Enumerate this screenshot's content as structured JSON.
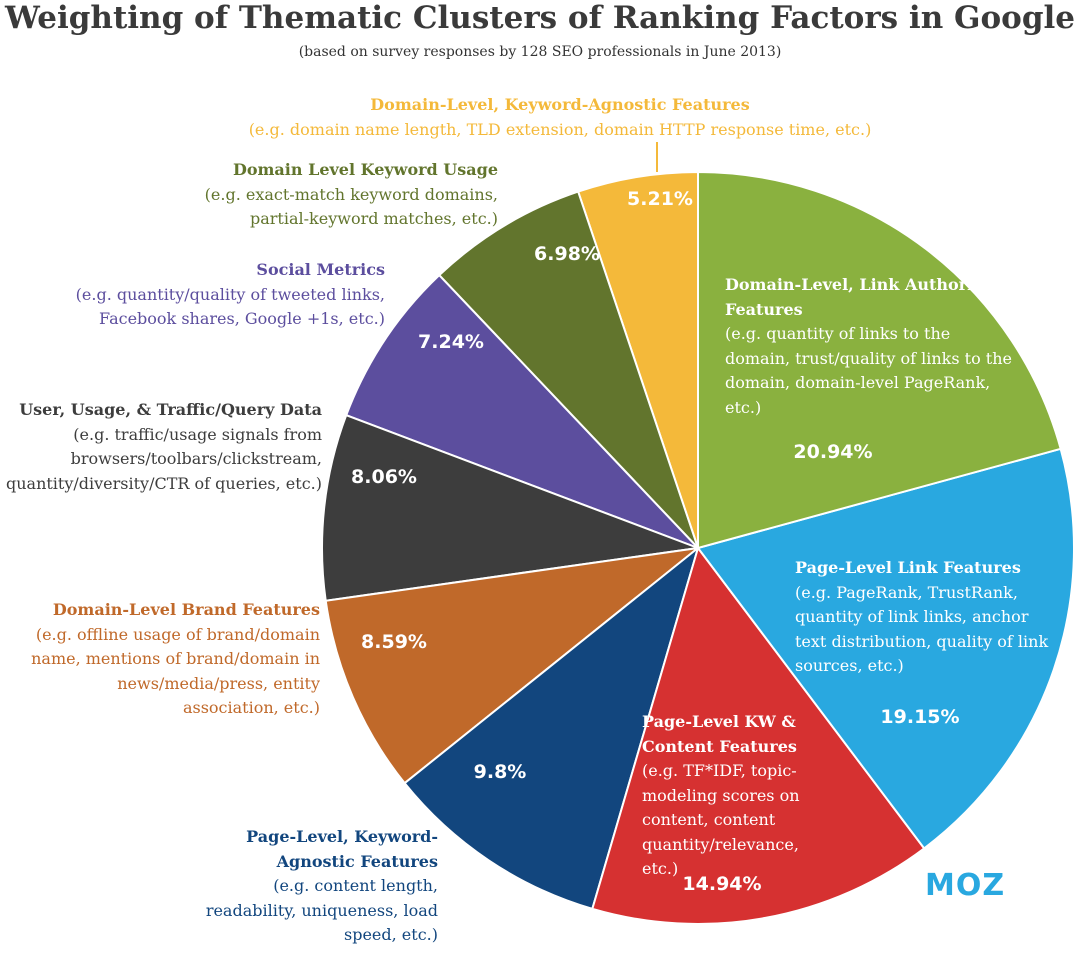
{
  "chart_data": {
    "type": "pie",
    "title": "Weighting of Thematic Clusters of Ranking Factors in Google",
    "subtitle": "(based on survey responses by 128 SEO professionals in June 2013)",
    "categories": [
      "Domain-Level, Link Authority Features",
      "Page-Level Link Features",
      "Page-Level KW & Content Features",
      "Page-Level, Keyword-Agnostic Features",
      "Domain-Level Brand Features",
      "User, Usage, & Traffic/Query Data",
      "Social Metrics",
      "Domain Level Keyword Usage",
      "Domain-Level, Keyword-Agnostic Features"
    ],
    "descriptions": [
      "(e.g. quantity of links to the domain, trust/quality of links to the domain, domain-level PageRank, etc.)",
      "(e.g. PageRank, TrustRank, quantity of link links, anchor text distribution, quality of link sources, etc.)",
      "(e.g. TF*IDF, topic-modeling scores on content, content quantity/relevance, etc.)",
      "(e.g. content length, readability, uniqueness, load speed, etc.)",
      "(e.g. offline usage of brand/domain name, mentions of brand/domain in news/media/press, entity association, etc.)",
      "(e.g. traffic/usage signals from browsers/toolbars/clickstream, quantity/diversity/CTR of queries, etc.)",
      "(e.g. quantity/quality of tweeted links, Facebook shares, Google +1s, etc.)",
      "(e.g. exact-match keyword domains, partial-keyword matches, etc.)",
      "(e.g. domain name length, TLD extension, domain HTTP response time, etc.)"
    ],
    "values": [
      20.94,
      19.15,
      14.94,
      9.8,
      8.59,
      8.06,
      7.24,
      6.98,
      5.21
    ],
    "value_labels": [
      "20.94%",
      "19.15%",
      "14.94%",
      "9.8%",
      "8.59%",
      "8.06%",
      "7.24%",
      "6.98%",
      "5.21%"
    ],
    "colors": [
      "#8ab13f",
      "#29a8e0",
      "#d63131",
      "#12467e",
      "#c0692a",
      "#3d3d3d",
      "#5c4e9e",
      "#62752d",
      "#f4b93a"
    ],
    "logo": "MOZ"
  }
}
